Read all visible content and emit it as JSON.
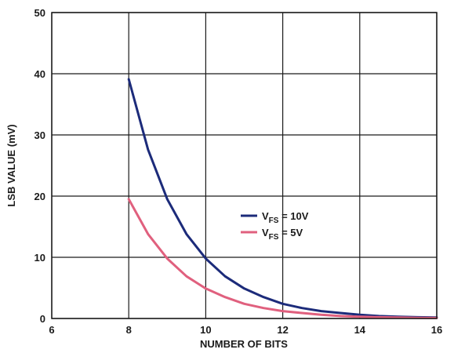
{
  "chart_data": {
    "type": "line",
    "title": "",
    "xlabel": "NUMBER OF BITS",
    "ylabel": "LSB VALUE (mV)",
    "xlim": [
      6,
      16
    ],
    "ylim": [
      0,
      50
    ],
    "x_ticks": [
      "6",
      "8",
      "10",
      "12",
      "14",
      "16"
    ],
    "y_ticks": [
      "0",
      "10",
      "20",
      "30",
      "40",
      "50"
    ],
    "grid": true,
    "legend_position": "center-right",
    "series": [
      {
        "name_main": "V",
        "name_sub": "FS",
        "name_rest": " = 10V",
        "color": "#1c2b7a",
        "x": [
          8,
          8.5,
          9,
          9.5,
          10,
          10.5,
          11,
          11.5,
          12,
          12.5,
          13,
          13.5,
          14,
          14.5,
          15,
          15.5,
          16
        ],
        "y": [
          39.1,
          27.6,
          19.5,
          13.8,
          9.8,
          6.9,
          4.9,
          3.5,
          2.4,
          1.7,
          1.2,
          0.9,
          0.6,
          0.4,
          0.3,
          0.2,
          0.15
        ]
      },
      {
        "name_main": "V",
        "name_sub": "FS",
        "name_rest": " = 5V",
        "color": "#e0607e",
        "x": [
          8,
          8.5,
          9,
          9.5,
          10,
          10.5,
          11,
          11.5,
          12,
          12.5,
          13,
          13.5,
          14,
          14.5,
          15,
          15.5,
          16
        ],
        "y": [
          19.5,
          13.8,
          9.8,
          6.9,
          4.9,
          3.5,
          2.4,
          1.7,
          1.2,
          0.9,
          0.6,
          0.4,
          0.3,
          0.2,
          0.15,
          0.1,
          0.08
        ]
      }
    ]
  }
}
